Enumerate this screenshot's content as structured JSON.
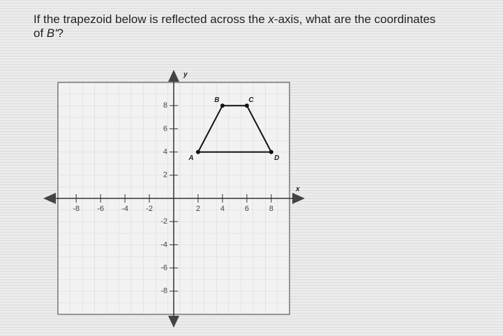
{
  "question": {
    "parts": [
      "If the trapezoid below is reflected across the ",
      "x",
      "-axis, what are the coordinates",
      "of ",
      "B'",
      "?"
    ]
  },
  "graph": {
    "x_label": "x",
    "y_label": "y",
    "xlim": [
      -9.5,
      9.5
    ],
    "ylim": [
      -10,
      10
    ],
    "xticks": [
      -8,
      -6,
      -4,
      -2,
      2,
      4,
      6,
      8
    ],
    "yticks": [
      -8,
      -6,
      -4,
      -2,
      2,
      4,
      6,
      8
    ],
    "points": [
      {
        "label": "A",
        "x": 2,
        "y": 4
      },
      {
        "label": "B",
        "x": 4,
        "y": 8
      },
      {
        "label": "C",
        "x": 6,
        "y": 8
      },
      {
        "label": "D",
        "x": 8,
        "y": 4
      }
    ]
  }
}
